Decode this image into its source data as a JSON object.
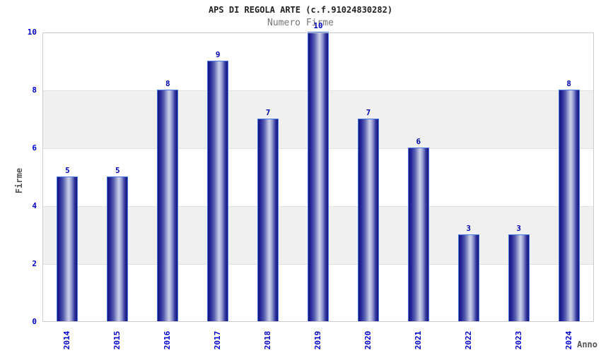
{
  "chart_data": {
    "type": "bar",
    "title": "APS DI REGOLA ARTE (c.f.91024830282)",
    "subtitle": "Numero Firme",
    "xlabel": "Anno",
    "ylabel": "Firme",
    "categories": [
      "2014",
      "2015",
      "2016",
      "2017",
      "2018",
      "2019",
      "2020",
      "2021",
      "2022",
      "2023",
      "2024"
    ],
    "values": [
      5,
      5,
      8,
      9,
      7,
      10,
      7,
      6,
      3,
      3,
      8
    ],
    "ylim": [
      0,
      10
    ],
    "yticks": [
      0,
      2,
      4,
      6,
      8,
      10
    ],
    "grid": "alternating horizontal gray bands every 2 units",
    "legend": "none",
    "value_labels": "shown above each bar"
  },
  "style": {
    "bar_edge_color": "#15157b",
    "bar_mid_color": "#5a62b0",
    "bar_highlight_color": "#c9cde9",
    "bar_outline_color": "#4a7ae0",
    "value_label_color": "#0000b4",
    "axis_tick_label_color": "#0000cc",
    "band_gray_color": "#f0f0f0",
    "plot_border_color": "#cccccc",
    "title_color": "#222222",
    "subtitle_color": "#777777",
    "axis_title_color": "#555555",
    "background_color": "#ffffff"
  }
}
